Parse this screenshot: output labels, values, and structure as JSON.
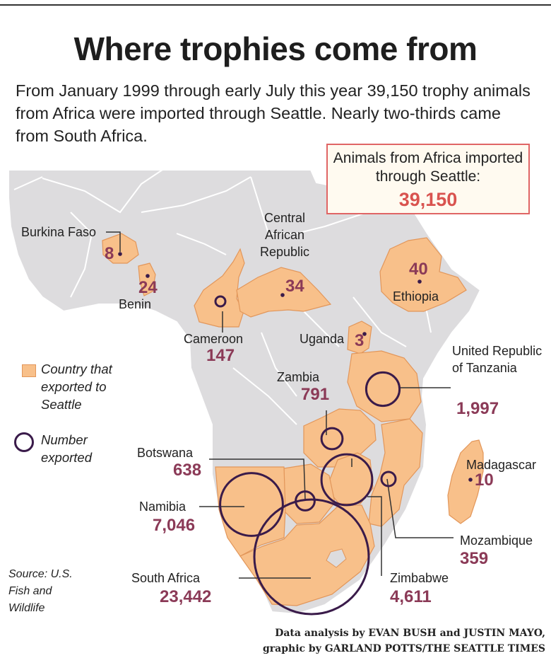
{
  "title": "Where trophies come from",
  "subtitle": "From January 1999 through early July this year 39,150 trophy animals from Africa were imported through Seattle. Nearly two-thirds came from South Africa.",
  "total": {
    "label": "Animals from Africa imported through Seattle:",
    "value": "39,150"
  },
  "legend": {
    "country": "Country that exported to Seattle",
    "number": "Number exported"
  },
  "colors": {
    "exporter": "#f8c08a",
    "land": "#dddcde",
    "circle": "#3a1b4a",
    "value": "#8b3a57",
    "accent": "#d9534f"
  },
  "countries": {
    "burkina_faso": {
      "name": "Burkina Faso",
      "value": "8",
      "count": 8
    },
    "benin": {
      "name": "Benin",
      "value": "24",
      "count": 24
    },
    "car": {
      "name": "Central African Republic",
      "value": "34",
      "count": 34
    },
    "ethiopia": {
      "name": "Ethiopia",
      "value": "40",
      "count": 40
    },
    "cameroon": {
      "name": "Cameroon",
      "value": "147",
      "count": 147
    },
    "uganda": {
      "name": "Uganda",
      "value": "3",
      "count": 3
    },
    "zambia": {
      "name": "Zambia",
      "value": "791",
      "count": 791
    },
    "tanzania": {
      "name": "United Republic of Tanzania",
      "value": "1,997",
      "count": 1997
    },
    "botswana": {
      "name": "Botswana",
      "value": "638",
      "count": 638
    },
    "madagascar": {
      "name": "Madagascar",
      "value": "10",
      "count": 10
    },
    "namibia": {
      "name": "Namibia",
      "value": "7,046",
      "count": 7046
    },
    "mozambique": {
      "name": "Mozambique",
      "value": "359",
      "count": 359
    },
    "south_africa": {
      "name": "South Africa",
      "value": "23,442",
      "count": 23442
    },
    "zimbabwe": {
      "name": "Zimbabwe",
      "value": "4,611",
      "count": 4611
    }
  },
  "source": "Source: U.S. Fish and Wildlife",
  "credit": {
    "line1": "Data analysis by EVAN BUSH and JUSTIN MAYO,",
    "line2": "graphic by GARLAND POTTS/THE SEATTLE TIMES"
  }
}
